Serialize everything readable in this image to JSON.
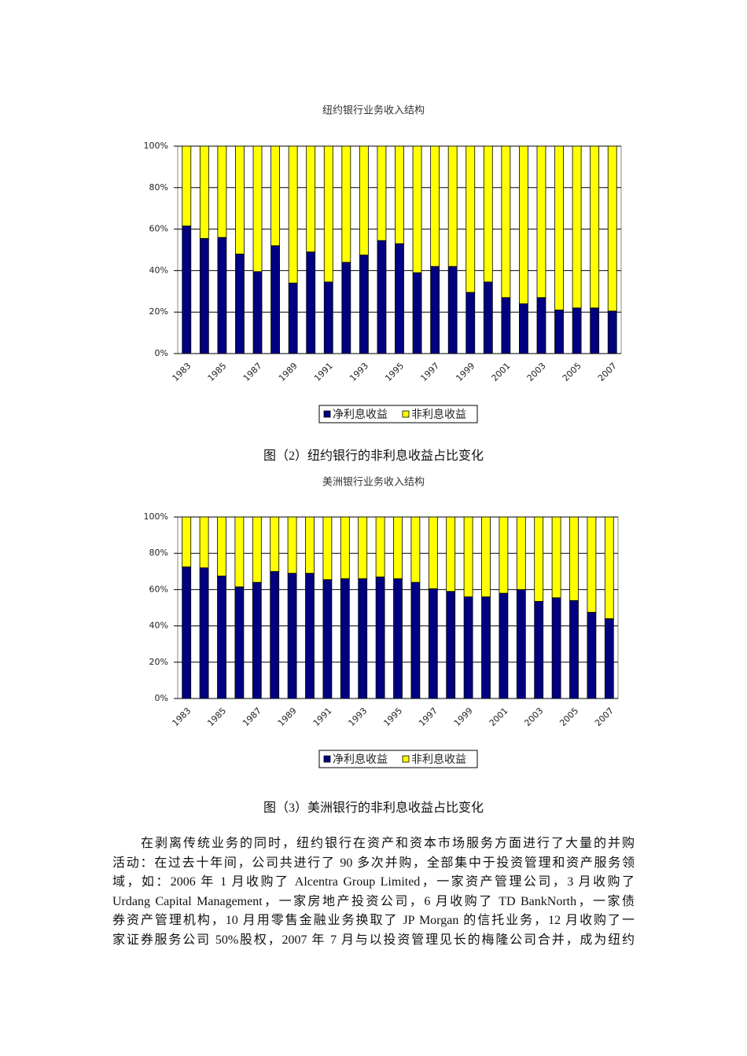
{
  "chart_data": [
    {
      "type": "bar",
      "stacked": true,
      "title": "纽约银行业务收入结构",
      "categories": [
        "1983",
        null,
        "1985",
        null,
        "1987",
        null,
        "1989",
        null,
        "1991",
        null,
        "1993",
        null,
        "1995",
        null,
        "1997",
        null,
        "1999",
        null,
        "2001",
        null,
        "2003",
        null,
        "2005",
        null,
        "2007"
      ],
      "series": [
        {
          "name": "净利息收益",
          "color": "#000080",
          "values": [
            61.5,
            55.5,
            56,
            48,
            39.5,
            52,
            34,
            49,
            34.5,
            44,
            47.5,
            54.5,
            53,
            39,
            42,
            42,
            29.5,
            34.5,
            27,
            24,
            27,
            21,
            22,
            22,
            20.5
          ]
        },
        {
          "name": "非利息收益",
          "color": "#ffff00",
          "values": [
            38.5,
            44.5,
            44,
            52,
            60.5,
            48,
            66,
            51,
            65.5,
            56,
            52.5,
            45.5,
            47,
            61,
            58,
            58,
            70.5,
            65.5,
            73,
            76,
            73,
            79,
            78,
            78,
            79.5
          ]
        }
      ],
      "ylim": [
        0,
        100
      ],
      "yticks": [
        {
          "value": 0,
          "label": "0%"
        },
        {
          "value": 20,
          "label": "20%"
        },
        {
          "value": 40,
          "label": "40%"
        },
        {
          "value": 60,
          "label": "60%"
        },
        {
          "value": 80,
          "label": "80%"
        },
        {
          "value": 100,
          "label": "100%"
        }
      ],
      "grid": true,
      "legend": "bottom"
    },
    {
      "type": "bar",
      "stacked": true,
      "title": "美洲银行业务收入结构",
      "categories": [
        "1983",
        null,
        "1985",
        null,
        "1987",
        null,
        "1989",
        null,
        "1991",
        null,
        "1993",
        null,
        "1995",
        null,
        "1997",
        null,
        "1999",
        null,
        "2001",
        null,
        "2003",
        null,
        "2005",
        null,
        "2007"
      ],
      "series": [
        {
          "name": "净利息收益",
          "color": "#000080",
          "values": [
            72.5,
            72,
            67.5,
            61.5,
            64,
            70,
            69,
            69,
            65.5,
            66,
            66,
            67,
            66,
            64,
            60.5,
            59,
            56,
            56,
            58,
            60,
            53.5,
            55.5,
            54,
            47.5,
            44
          ]
        },
        {
          "name": "非利息收益",
          "color": "#ffff00",
          "values": [
            27.5,
            28,
            32.5,
            38.5,
            36,
            30,
            31,
            31,
            34.5,
            34,
            34,
            33,
            34,
            36,
            39.5,
            41,
            44,
            44,
            42,
            40,
            46.5,
            44.5,
            46,
            52.5,
            56
          ]
        }
      ],
      "ylim": [
        0,
        100
      ],
      "yticks": [
        {
          "value": 0,
          "label": "0%"
        },
        {
          "value": 20,
          "label": "20%"
        },
        {
          "value": 40,
          "label": "40%"
        },
        {
          "value": 60,
          "label": "60%"
        },
        {
          "value": 80,
          "label": "80%"
        },
        {
          "value": 100,
          "label": "100%"
        }
      ],
      "grid": true,
      "legend": "bottom"
    }
  ],
  "captions": [
    "图（2）纽约银行的非利息收益占比变化",
    "图（3）美洲银行的非利息收益占比变化"
  ],
  "paragraph_lines": [
    "在剥离传统业务的同时，纽约银行在资产和资本市场服务方面进行了大量的并购",
    "活动：在过去十年间，公司共进行了 90 多次并购，全部集中于投资管理和资产服务领",
    "域，如：2006 年 1 月收购了 Alcentra Group Limited，一家资产管理公司，3 月收购了",
    "Urdang Capital Management，一家房地产投资公司，6 月收购了 TD BankNorth，一家债",
    "券资产管理机构，10 月用零售金融业务换取了 JP Morgan 的信托业务，12 月收购了一",
    "家证券服务公司 50%股权，2007 年 7 月与以投资管理见长的梅隆公司合并，成为纽约"
  ]
}
